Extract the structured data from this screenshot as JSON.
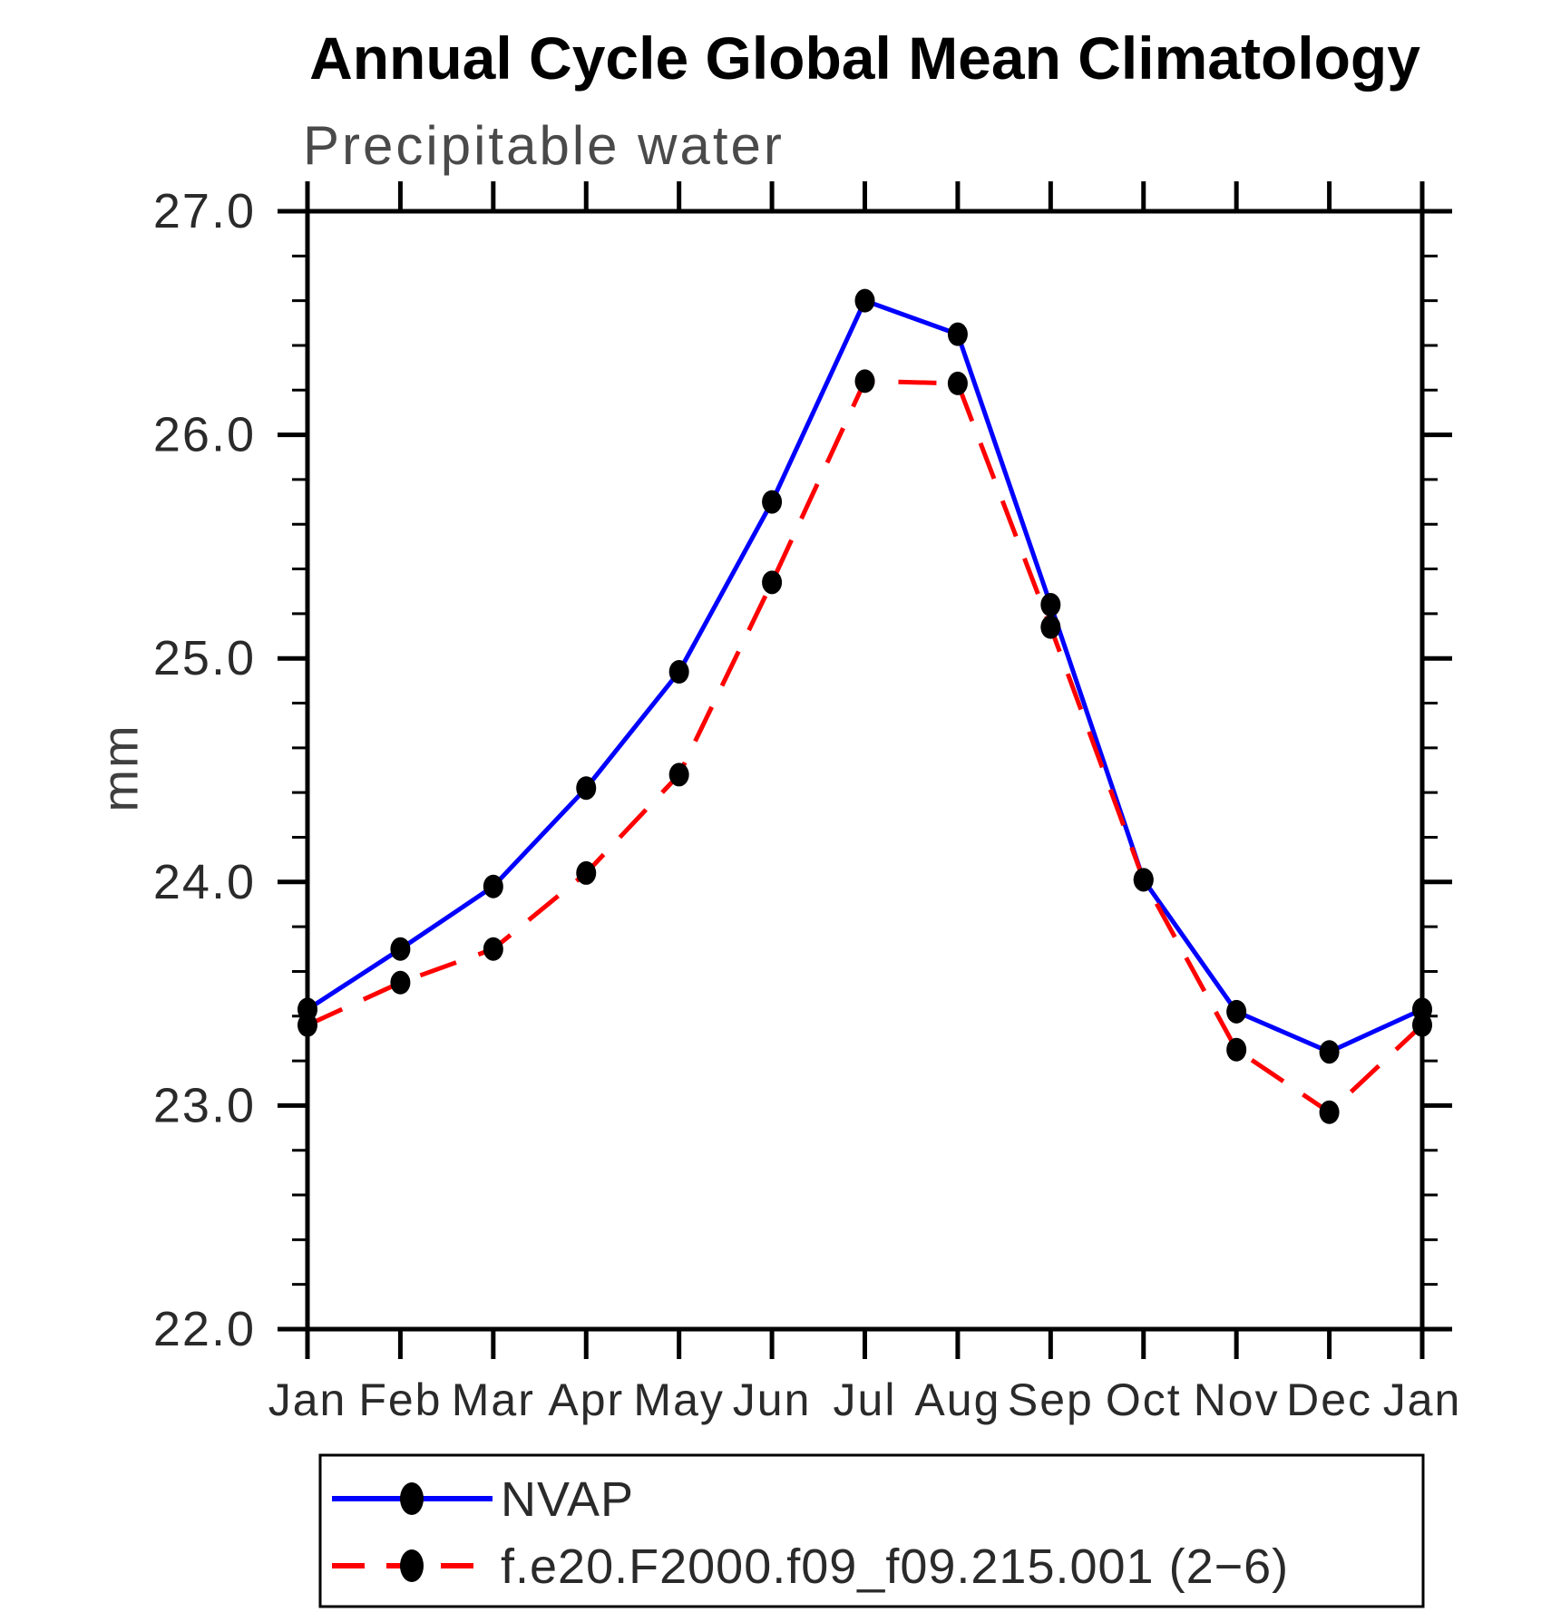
{
  "page": {
    "background": "#ffffff"
  },
  "chart_data": {
    "type": "line",
    "title": "Annual Cycle Global Mean Climatology",
    "subtitle": "Precipitable water",
    "xlabel": "",
    "ylabel": "mm",
    "categories": [
      "Jan",
      "Feb",
      "Mar",
      "Apr",
      "May",
      "Jun",
      "Jul",
      "Aug",
      "Sep",
      "Oct",
      "Nov",
      "Dec",
      "Jan"
    ],
    "ylim": [
      22.0,
      27.0
    ],
    "ytick_major_step": 1.0,
    "ytick_minor_step": 0.2,
    "ytick_labels": [
      "22.0",
      "23.0",
      "24.0",
      "25.0",
      "26.0",
      "27.0"
    ],
    "grid": false,
    "plot_frame": "box-with-outside-ticks",
    "legend_position": "bottom-left-box",
    "axis_color": "#000000",
    "label_color": "#2a2a2a",
    "marker": {
      "shape": "filled-circle",
      "color": "#000000"
    },
    "series": [
      {
        "name": "NVAP",
        "color": "#0000ff",
        "line_style": "solid",
        "values": [
          23.43,
          23.7,
          23.98,
          24.42,
          24.94,
          25.7,
          26.6,
          26.45,
          25.24,
          24.01,
          23.42,
          23.24,
          23.43
        ]
      },
      {
        "name": "f.e20.F2000.f09_f09.215.001 (2−6)",
        "color": "#ff0000",
        "line_style": "dashed",
        "values": [
          23.36,
          23.55,
          23.7,
          24.04,
          24.48,
          25.34,
          26.24,
          26.23,
          25.14,
          24.01,
          23.25,
          22.97,
          23.36
        ]
      }
    ]
  }
}
